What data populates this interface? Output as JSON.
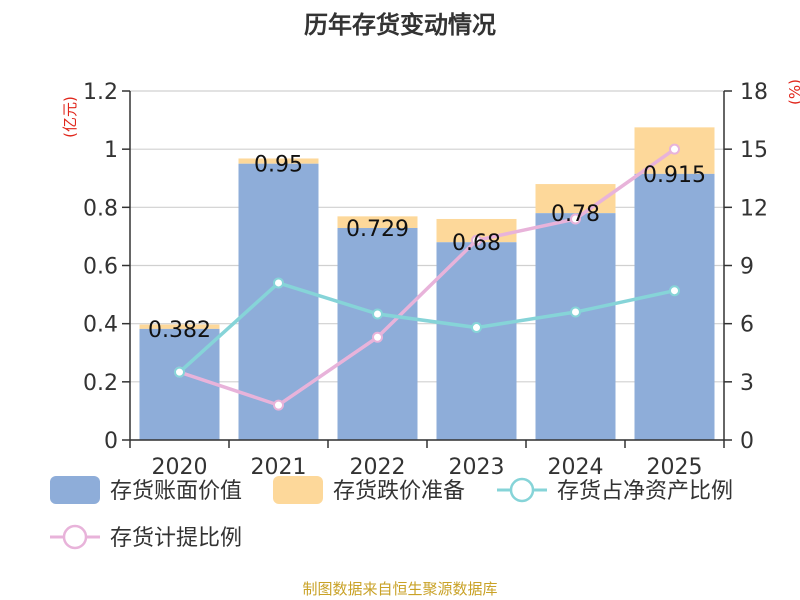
{
  "chart_data": {
    "type": "bar",
    "title": "历年存货变动情况",
    "left_unit": "(亿元)",
    "right_unit": "(%)",
    "categories": [
      "2020",
      "2021",
      "2022",
      "2023",
      "2024",
      "2025"
    ],
    "series": [
      {
        "name": "存货账面价值",
        "type": "bar",
        "axis": "left",
        "color": "#8eadd9",
        "values": [
          0.382,
          0.95,
          0.729,
          0.68,
          0.78,
          0.915
        ]
      },
      {
        "name": "存货跌价准备",
        "type": "bar",
        "axis": "left",
        "color": "#fdd89a",
        "values": [
          0.015,
          0.018,
          0.04,
          0.08,
          0.1,
          0.16
        ]
      },
      {
        "name": "存货占净资产比例",
        "type": "line",
        "axis": "right",
        "color": "#86d4d8",
        "values": [
          3.5,
          8.1,
          6.5,
          5.8,
          6.6,
          7.7
        ]
      },
      {
        "name": "存货计提比例",
        "type": "line",
        "axis": "right",
        "color": "#e8b3da",
        "values": [
          3.5,
          1.8,
          5.3,
          10.3,
          11.4,
          15.0
        ]
      }
    ],
    "y_left": {
      "min": 0,
      "max": 1.2,
      "ticks": [
        "0",
        "0.2",
        "0.4",
        "0.6",
        "0.8",
        "1",
        "1.2"
      ]
    },
    "y_right": {
      "min": 0,
      "max": 18,
      "ticks": [
        "0",
        "3",
        "6",
        "9",
        "12",
        "15",
        "18"
      ]
    },
    "data_labels": [
      "0.382",
      "0.95",
      "0.729",
      "0.68",
      "0.78",
      "0.915"
    ],
    "grid": true,
    "legend_position": "bottom",
    "source": "制图数据来自恒生聚源数据库"
  }
}
